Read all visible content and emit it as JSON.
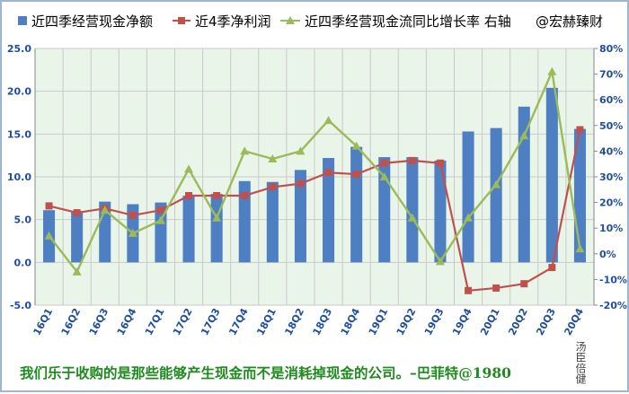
{
  "legend": {
    "bar_label": "近四季经营现金净额",
    "profit_label": "近4季净利润",
    "growth_label": "近四季经营现金流同比增长率 右轴",
    "watermark": "@宏赫臻财"
  },
  "footer": {
    "quote": "我们乐于收购的是那些能够产生现金而不是消耗掉现金的公司。–巴菲特@1980",
    "author": "汤臣倍健"
  },
  "colors": {
    "bar": "#4f7fc3",
    "profit": "#c0504d",
    "growth": "#9bbb59",
    "plot_bg": "#eaf5ea",
    "frame": "#9bb7d4",
    "quote": "#1f8a1f"
  },
  "chart_data": {
    "type": "bar",
    "categories": [
      "16Q1",
      "16Q2",
      "16Q3",
      "16Q4",
      "17Q1",
      "17Q2",
      "17Q3",
      "17Q4",
      "18Q1",
      "18Q2",
      "18Q3",
      "18Q4",
      "19Q1",
      "19Q2",
      "19Q3",
      "19Q4",
      "20Q1",
      "20Q2",
      "20Q3",
      "20Q4"
    ],
    "y_left": {
      "min": -5,
      "max": 25,
      "ticks": [
        "-5.0",
        "0.0",
        "5.0",
        "10.0",
        "15.0",
        "20.0",
        "25.0"
      ]
    },
    "y_right": {
      "min": -20,
      "max": 80,
      "ticks": [
        "-20%",
        "-10%",
        "0%",
        "10%",
        "20%",
        "30%",
        "40%",
        "50%",
        "60%",
        "70%",
        "80%"
      ]
    },
    "series": [
      {
        "name": "近四季经营现金净额",
        "type": "bar",
        "axis": "left",
        "values": [
          6.1,
          6.0,
          7.1,
          6.8,
          7.0,
          7.8,
          8.0,
          9.5,
          9.4,
          10.8,
          12.2,
          13.5,
          12.3,
          12.3,
          11.9,
          15.3,
          15.7,
          18.2,
          20.4,
          15.6
        ]
      },
      {
        "name": "近4季净利润",
        "type": "line",
        "axis": "left",
        "values": [
          6.6,
          5.8,
          6.3,
          5.5,
          6.1,
          7.8,
          7.8,
          7.8,
          8.8,
          9.2,
          10.5,
          10.3,
          11.6,
          11.9,
          11.6,
          -3.3,
          -3.0,
          -2.5,
          -0.6,
          15.5
        ]
      },
      {
        "name": "近四季经营现金流同比增长率",
        "type": "line",
        "axis": "right",
        "values": [
          7,
          -7,
          17,
          8,
          13,
          33,
          14,
          40,
          37,
          40,
          52,
          42,
          30,
          14,
          -3,
          14,
          27,
          46,
          71,
          2
        ]
      }
    ]
  }
}
